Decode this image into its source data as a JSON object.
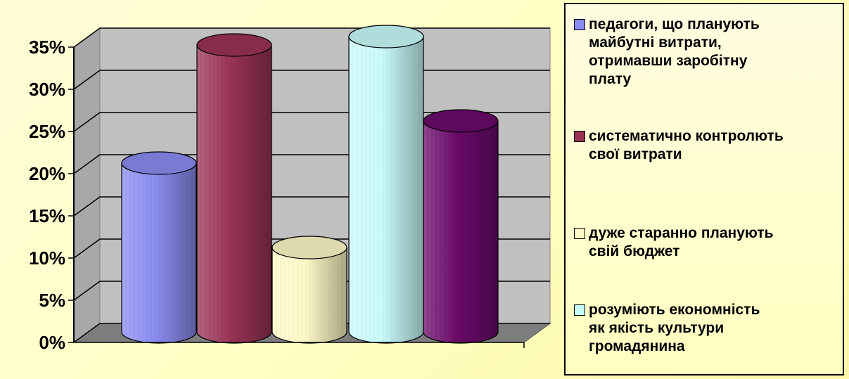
{
  "chart_data": {
    "type": "bar",
    "style": "3d-cylinder",
    "categories": [
      "педагоги, що планують майбутні витрати, отримавши заробітну плату",
      "систематично контролють свої витрати",
      "дуже старанно планують свій бюджет",
      "розуміють   економність як якість культури громадянина",
      ""
    ],
    "values": [
      20,
      34,
      10,
      35,
      25
    ],
    "colors": [
      "#8a8cf0",
      "#993355",
      "#fdf8c6",
      "#c8fafa",
      "#6a0a6a"
    ],
    "ylim": [
      0,
      35
    ],
    "yticks": [
      "0%",
      "5%",
      "10%",
      "15%",
      "20%",
      "25%",
      "30%",
      "35%"
    ],
    "grid": true,
    "legend_position": "right"
  },
  "legend": [
    {
      "label": "педагоги, що планують\nмайбутні витрати,\nотримавши заробітну\nплату",
      "color": "#8a8cf0"
    },
    {
      "label": "систематично контролють\nсвої витрати",
      "color": "#993355"
    },
    {
      "label": "дуже старанно планують\nсвій бюджет",
      "color": "#fdf8c6"
    },
    {
      "label": "розуміють   економність\nяк якість культури\nгромадянина",
      "color": "#c8fafa"
    }
  ]
}
